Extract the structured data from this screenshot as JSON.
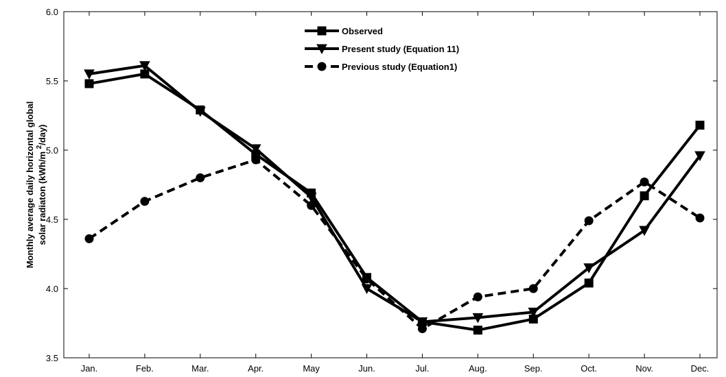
{
  "chart_data": {
    "type": "line",
    "ylabel": [
      "Monthly average daily horizontal global",
      "solar radiaton (kWh/m ",
      "2",
      "/day)"
    ],
    "categories": [
      "Jan.",
      "Feb.",
      "Mar.",
      "Apr.",
      "May",
      "Jun.",
      "Jul.",
      "Aug.",
      "Sep.",
      "Oct.",
      "Nov.",
      "Dec."
    ],
    "series": [
      {
        "name": "Observed",
        "color": "#000000",
        "marker": "square",
        "dash": false,
        "values": [
          5.48,
          5.55,
          5.29,
          4.97,
          4.69,
          4.08,
          3.76,
          3.7,
          3.78,
          4.04,
          4.67,
          5.18
        ]
      },
      {
        "name": "Present study (Equation 11)",
        "color": "#000000",
        "marker": "triangle-down",
        "dash": false,
        "values": [
          5.55,
          5.61,
          5.28,
          5.01,
          4.66,
          4.0,
          3.76,
          3.79,
          3.83,
          4.15,
          4.42,
          4.96
        ]
      },
      {
        "name": "Previous study (Equation1)",
        "color": "#000000",
        "marker": "circle",
        "dash": true,
        "values": [
          4.36,
          4.63,
          4.8,
          4.93,
          4.6,
          4.07,
          3.71,
          3.94,
          4.0,
          4.49,
          4.77,
          4.51
        ]
      }
    ],
    "ylim": [
      3.5,
      6.0
    ],
    "yticks": [
      {
        "value": 3.5,
        "label": "3.5"
      },
      {
        "value": 4,
        "label": "4.0"
      },
      {
        "value": 4.5,
        "label": "4.5"
      },
      {
        "value": 5,
        "label": "5.0"
      },
      {
        "value": 5.5,
        "label": "5.5"
      },
      {
        "value": 6,
        "label": "6.0"
      }
    ],
    "legend": "top-center"
  }
}
